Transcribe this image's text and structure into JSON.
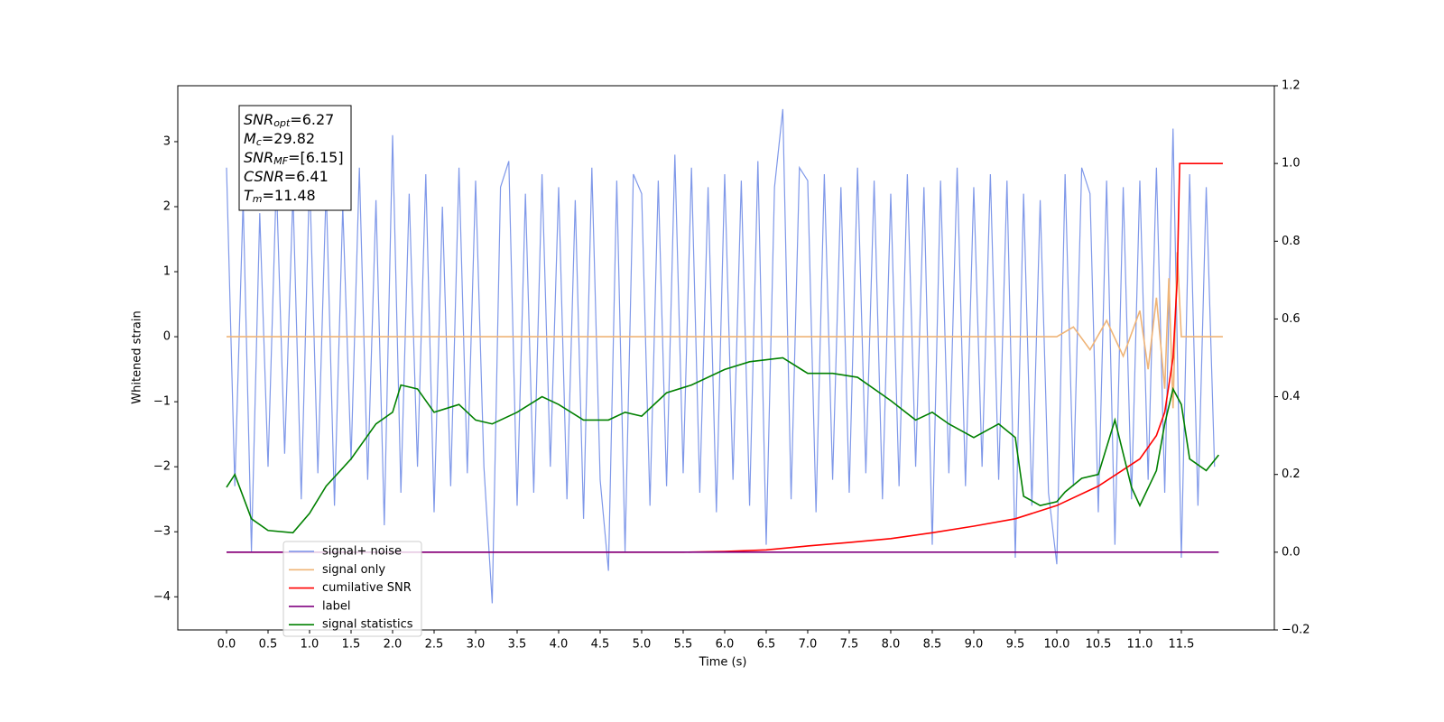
{
  "chart_data": {
    "type": "line",
    "xlabel": "Time (s)",
    "ylabel": "Whitened strain",
    "xlim": [
      -0.587,
      12.62
    ],
    "ylim": [
      -4.51,
      3.86
    ],
    "y2lim": [
      -0.2,
      1.2
    ],
    "xticks": [
      {
        "value": 0,
        "label": "0.0"
      },
      0.5,
      {
        "value": 1,
        "label": "1.0"
      },
      1.5,
      {
        "value": 2,
        "label": "2.0"
      },
      2.5,
      {
        "value": 3,
        "label": "3.0"
      },
      3.5,
      {
        "value": 4,
        "label": "4.0"
      },
      4.5,
      {
        "value": 5,
        "label": "5.0"
      },
      5.5,
      {
        "value": 6,
        "label": "6.0"
      },
      6.5,
      {
        "value": 7,
        "label": "7.0"
      },
      7.5,
      {
        "value": 8,
        "label": "8.0"
      },
      8.5,
      {
        "value": 9,
        "label": "9.0"
      },
      9.5,
      {
        "value": 10,
        "label": "10.0"
      },
      10.5,
      {
        "value": 11,
        "label": "11.0"
      },
      11.5
    ],
    "yticks": [
      {
        "value": -4,
        "label": "−4"
      },
      {
        "value": -3,
        "label": "−3"
      },
      {
        "value": -2,
        "label": "−2"
      },
      {
        "value": -1,
        "label": "−1"
      },
      0,
      1,
      2,
      3
    ],
    "y2ticks": [
      {
        "value": -0.2,
        "label": "−0.2"
      },
      {
        "value": 0,
        "label": "0.0"
      },
      0.2,
      0.4,
      0.6,
      0.8,
      {
        "value": 1,
        "label": "1.0"
      },
      1.2
    ],
    "legend": "lower left",
    "annotation": [
      {
        "main": "SNR",
        "sub": "opt",
        "text": "=6.27"
      },
      {
        "main": "M",
        "sub": "c",
        "text": "=29.82"
      },
      {
        "main": "SNR",
        "sub": "MF",
        "text": "=[6.15]"
      },
      {
        "main": "CSNR",
        "text": "=6.41"
      },
      {
        "main": "T",
        "sub": "m",
        "text": "=11.48"
      }
    ],
    "series": [
      {
        "name": "signal+ noise",
        "color": "#7892e8",
        "x": [
          0.0,
          0.1,
          0.2,
          0.3,
          0.4,
          0.5,
          0.6,
          0.7,
          0.8,
          0.9,
          1.0,
          1.1,
          1.2,
          1.3,
          1.4,
          1.5,
          1.6,
          1.7,
          1.8,
          1.9,
          2.0,
          2.1,
          2.2,
          2.3,
          2.4,
          2.5,
          2.6,
          2.7,
          2.8,
          2.9,
          3.0,
          3.1,
          3.2,
          3.3,
          3.4,
          3.5,
          3.6,
          3.7,
          3.8,
          3.9,
          4.0,
          4.1,
          4.2,
          4.3,
          4.4,
          4.5,
          4.6,
          4.7,
          4.8,
          4.9,
          5.0,
          5.1,
          5.2,
          5.3,
          5.4,
          5.5,
          5.6,
          5.7,
          5.8,
          5.9,
          6.0,
          6.1,
          6.2,
          6.3,
          6.4,
          6.5,
          6.6,
          6.7,
          6.8,
          6.9,
          7.0,
          7.1,
          7.2,
          7.3,
          7.4,
          7.5,
          7.6,
          7.7,
          7.8,
          7.9,
          8.0,
          8.1,
          8.2,
          8.3,
          8.4,
          8.5,
          8.6,
          8.7,
          8.8,
          8.9,
          9.0,
          9.1,
          9.2,
          9.3,
          9.4,
          9.5,
          9.6,
          9.7,
          9.8,
          9.9,
          10.0,
          10.1,
          10.2,
          10.3,
          10.4,
          10.5,
          10.6,
          10.7,
          10.8,
          10.9,
          11.0,
          11.1,
          11.2,
          11.3,
          11.4,
          11.5,
          11.6,
          11.7,
          11.8,
          11.9
        ],
        "values": [
          2.6,
          -2.3,
          2.1,
          -3.3,
          1.9,
          -2.0,
          2.4,
          -1.8,
          2.2,
          -2.5,
          2.5,
          -2.1,
          2.3,
          -2.6,
          2.0,
          -1.9,
          2.6,
          -2.2,
          2.1,
          -2.9,
          3.1,
          -2.4,
          2.2,
          -2.0,
          2.5,
          -2.7,
          2.0,
          -2.3,
          2.6,
          -2.1,
          2.4,
          -2.0,
          -4.1,
          2.3,
          2.7,
          -2.6,
          2.2,
          -2.4,
          2.5,
          -2.0,
          2.3,
          -2.5,
          2.1,
          -2.8,
          2.6,
          -2.2,
          -3.6,
          2.4,
          -3.3,
          2.5,
          2.2,
          -2.6,
          2.4,
          -2.3,
          2.8,
          -2.1,
          2.6,
          -2.4,
          2.3,
          -2.7,
          2.5,
          -2.2,
          2.4,
          -2.6,
          2.7,
          -3.2,
          2.3,
          3.5,
          -2.5,
          2.6,
          2.4,
          -2.7,
          2.5,
          -2.2,
          2.3,
          -2.4,
          2.6,
          -2.1,
          2.4,
          -2.5,
          2.2,
          -2.3,
          2.5,
          -2.0,
          2.3,
          -3.2,
          2.4,
          -2.1,
          2.6,
          -2.3,
          2.3,
          -2.0,
          2.5,
          -2.2,
          2.4,
          -3.4,
          2.2,
          -2.6,
          2.1,
          -2.4,
          -3.5,
          2.5,
          -2.3,
          2.6,
          2.2,
          -2.7,
          2.4,
          -3.2,
          2.3,
          -2.5,
          2.4,
          -2.2,
          2.6,
          -2.4,
          3.2,
          -3.4,
          2.5,
          -2.6,
          2.3,
          -2.0
        ]
      },
      {
        "name": "signal only",
        "color": "#efb477",
        "x": [
          0,
          10.0,
          10.2,
          10.4,
          10.6,
          10.8,
          11.0,
          11.1,
          11.2,
          11.3,
          11.35,
          11.4,
          11.45,
          11.5,
          12.0
        ],
        "values": [
          0,
          0,
          0.15,
          -0.2,
          0.25,
          -0.3,
          0.4,
          -0.5,
          0.6,
          -0.8,
          0.9,
          -1.1,
          1.3,
          0,
          0
        ]
      },
      {
        "name": "cumilative SNR",
        "color": "#ff0000",
        "axis": "y2",
        "x": [
          0,
          5.5,
          6.0,
          6.5,
          7.0,
          7.5,
          8.0,
          8.5,
          9.0,
          9.5,
          10.0,
          10.5,
          11.0,
          11.2,
          11.3,
          11.4,
          11.45,
          11.48,
          12.0
        ],
        "values": [
          0,
          0,
          0.002,
          0.006,
          0.016,
          0.025,
          0.035,
          0.05,
          0.067,
          0.086,
          0.12,
          0.17,
          0.24,
          0.3,
          0.36,
          0.5,
          0.7,
          1.0,
          1.0
        ]
      },
      {
        "name": "label",
        "color": "#800080",
        "axis": "y2",
        "x": [
          0,
          11.95
        ],
        "values": [
          0,
          0
        ]
      },
      {
        "name": "signal statistics",
        "color": "#008000",
        "axis": "y2",
        "x": [
          0,
          0.1,
          0.3,
          0.5,
          0.8,
          1.0,
          1.2,
          1.5,
          1.8,
          2.0,
          2.1,
          2.3,
          2.5,
          2.8,
          3.0,
          3.2,
          3.5,
          3.8,
          4.0,
          4.3,
          4.6,
          4.8,
          5.0,
          5.3,
          5.6,
          6.0,
          6.3,
          6.7,
          7.0,
          7.3,
          7.6,
          8.0,
          8.3,
          8.5,
          8.7,
          9.0,
          9.3,
          9.5,
          9.6,
          9.8,
          10.0,
          10.1,
          10.3,
          10.5,
          10.7,
          10.9,
          11.0,
          11.2,
          11.3,
          11.4,
          11.5,
          11.6,
          11.8,
          11.95
        ],
        "values": [
          0.167,
          0.2,
          0.086,
          0.056,
          0.05,
          0.1,
          0.17,
          0.24,
          0.33,
          0.36,
          0.43,
          0.42,
          0.36,
          0.38,
          0.34,
          0.33,
          0.36,
          0.4,
          0.38,
          0.34,
          0.34,
          0.36,
          0.35,
          0.41,
          0.43,
          0.47,
          0.49,
          0.5,
          0.46,
          0.46,
          0.45,
          0.39,
          0.34,
          0.36,
          0.33,
          0.295,
          0.33,
          0.295,
          0.144,
          0.12,
          0.13,
          0.155,
          0.19,
          0.2,
          0.34,
          0.167,
          0.12,
          0.21,
          0.33,
          0.42,
          0.38,
          0.24,
          0.21,
          0.25
        ]
      }
    ]
  }
}
